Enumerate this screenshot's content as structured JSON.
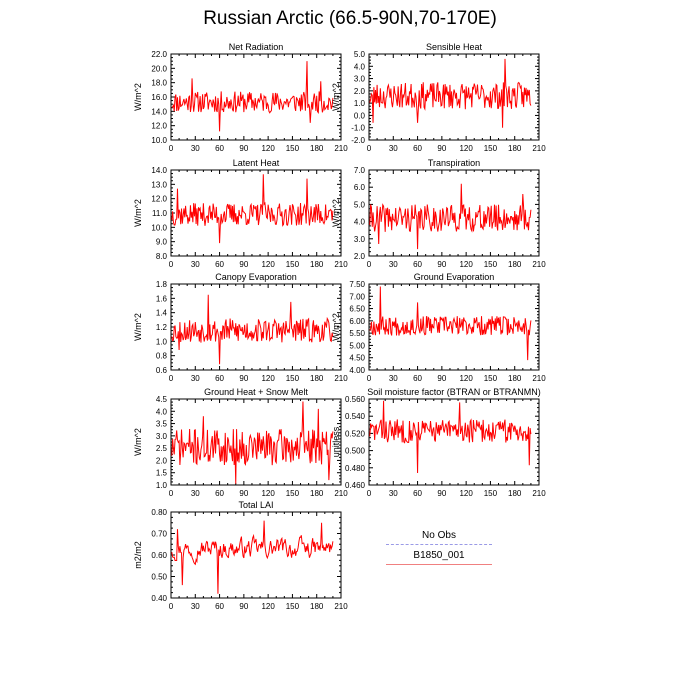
{
  "title": "Russian Arctic (66.5-90N,70-170E)",
  "legend": [
    {
      "label": "No Obs",
      "color": "#9a9ae6",
      "style": "dashed"
    },
    {
      "label": "B1850_001",
      "color": "#f08080",
      "style": "solid"
    }
  ],
  "series_color": "#ff0000",
  "chart_data": [
    {
      "type": "line",
      "title": "Net Radiation",
      "ylabel": "W/m^2",
      "xlim": [
        0,
        210
      ],
      "ylim": [
        10,
        22
      ],
      "xticks": [
        0,
        30,
        60,
        90,
        120,
        150,
        180,
        210
      ],
      "yticks": [
        "10.0",
        "12.0",
        "14.0",
        "16.0",
        "18.0",
        "20.0",
        "22.0"
      ],
      "series": [
        {
          "base": 15.3,
          "amp": 1.5,
          "seed": 11,
          "spikes": [
            [
              26,
              18.6
            ],
            [
              60,
              11.2
            ],
            [
              168,
              21.0
            ],
            [
              172,
              12.4
            ],
            [
              185,
              18.2
            ]
          ]
        }
      ]
    },
    {
      "type": "line",
      "title": "Sensible Heat",
      "ylabel": "W/m^2",
      "xlim": [
        0,
        210
      ],
      "ylim": [
        -2,
        5
      ],
      "xticks": [
        0,
        30,
        60,
        90,
        120,
        150,
        180,
        210
      ],
      "yticks": [
        "-2.0",
        "-1.0",
        "0.0",
        "1.0",
        "2.0",
        "3.0",
        "4.0",
        "5.0"
      ],
      "series": [
        {
          "base": 1.6,
          "amp": 1.1,
          "seed": 23,
          "spikes": [
            [
              168,
              4.6
            ],
            [
              165,
              -1.0
            ],
            [
              60,
              -0.6
            ],
            [
              5,
              -0.6
            ]
          ]
        }
      ]
    },
    {
      "type": "line",
      "title": "Latent Heat",
      "ylabel": "W/m^2",
      "xlim": [
        0,
        210
      ],
      "ylim": [
        8,
        14
      ],
      "xticks": [
        0,
        30,
        60,
        90,
        120,
        150,
        180,
        210
      ],
      "yticks": [
        "8.0",
        "9.0",
        "10.0",
        "11.0",
        "12.0",
        "13.0",
        "14.0"
      ],
      "series": [
        {
          "base": 10.9,
          "amp": 0.8,
          "seed": 37,
          "spikes": [
            [
              114,
              13.7
            ],
            [
              168,
              13.4
            ],
            [
              60,
              8.9
            ],
            [
              8,
              12.7
            ]
          ]
        }
      ]
    },
    {
      "type": "line",
      "title": "Transpiration",
      "ylabel": "W/m^2",
      "xlim": [
        0,
        210
      ],
      "ylim": [
        2,
        7
      ],
      "xticks": [
        0,
        30,
        60,
        90,
        120,
        150,
        180,
        210
      ],
      "yticks": [
        "2.0",
        "3.0",
        "4.0",
        "5.0",
        "6.0",
        "7.0"
      ],
      "series": [
        {
          "base": 4.2,
          "amp": 0.8,
          "seed": 41,
          "spikes": [
            [
              114,
              6.2
            ],
            [
              60,
              2.4
            ],
            [
              12,
              2.7
            ],
            [
              190,
              5.6
            ]
          ]
        }
      ]
    },
    {
      "type": "line",
      "title": "Canopy Evaporation",
      "ylabel": "W/m^2",
      "xlim": [
        0,
        210
      ],
      "ylim": [
        0.6,
        1.8
      ],
      "xticks": [
        0,
        30,
        60,
        90,
        120,
        150,
        180,
        210
      ],
      "yticks": [
        "0.6",
        "0.8",
        "1.0",
        "1.2",
        "1.4",
        "1.6",
        "1.8"
      ],
      "series": [
        {
          "base": 1.15,
          "amp": 0.17,
          "seed": 53,
          "spikes": [
            [
              46,
              1.65
            ],
            [
              60,
              0.68
            ],
            [
              148,
              1.55
            ],
            [
              10,
              0.88
            ]
          ]
        }
      ]
    },
    {
      "type": "line",
      "title": "Ground Evaporation",
      "ylabel": "W/m^2",
      "xlim": [
        0,
        210
      ],
      "ylim": [
        4.0,
        7.5
      ],
      "xticks": [
        0,
        30,
        60,
        90,
        120,
        150,
        180,
        210
      ],
      "yticks": [
        "4.00",
        "4.50",
        "5.00",
        "5.50",
        "6.00",
        "6.50",
        "7.00",
        "7.50"
      ],
      "series": [
        {
          "base": 5.8,
          "amp": 0.4,
          "seed": 67,
          "spikes": [
            [
              14,
              7.4
            ],
            [
              196,
              4.4
            ],
            [
              60,
              6.75
            ]
          ]
        }
      ]
    },
    {
      "type": "line",
      "title": "Ground Heat + Snow Melt",
      "ylabel": "W/m^2",
      "xlim": [
        0,
        210
      ],
      "ylim": [
        1.0,
        4.5
      ],
      "xticks": [
        0,
        30,
        60,
        90,
        120,
        150,
        180,
        210
      ],
      "yticks": [
        "1.0",
        "1.5",
        "2.0",
        "2.5",
        "3.0",
        "3.5",
        "4.0",
        "4.5"
      ],
      "series": [
        {
          "base": 2.55,
          "amp": 0.75,
          "seed": 71,
          "spikes": [
            [
              163,
              4.4
            ],
            [
              80,
              1.05
            ],
            [
              182,
              4.1
            ],
            [
              195,
              1.2
            ],
            [
              40,
              3.8
            ]
          ]
        }
      ]
    },
    {
      "type": "line",
      "title": "Soil moisture factor (BTRAN or BTRANMN)",
      "ylabel": "unitless",
      "xlim": [
        0,
        210
      ],
      "ylim": [
        0.46,
        0.56
      ],
      "xticks": [
        0,
        30,
        60,
        90,
        120,
        150,
        180,
        210
      ],
      "yticks": [
        "0.460",
        "0.480",
        "0.500",
        "0.520",
        "0.540",
        "0.560"
      ],
      "series": [
        {
          "base": 0.523,
          "amp": 0.014,
          "seed": 83,
          "spikes": [
            [
              18,
              0.558
            ],
            [
              60,
              0.474
            ],
            [
              198,
              0.483
            ],
            [
              112,
              0.556
            ]
          ]
        }
      ]
    },
    {
      "type": "line",
      "title": "Total LAI",
      "ylabel": "m2/m2",
      "xlim": [
        0,
        210
      ],
      "ylim": [
        0.4,
        0.8
      ],
      "xticks": [
        0,
        30,
        60,
        90,
        120,
        150,
        180,
        210
      ],
      "yticks": [
        "0.40",
        "0.50",
        "0.60",
        "0.70",
        "0.80"
      ],
      "series": [
        {
          "base": 0.63,
          "amp": 0.05,
          "seed": 97,
          "smooth": true,
          "spikes": [
            [
              8,
              0.72
            ],
            [
              14,
              0.46
            ],
            [
              58,
              0.42
            ],
            [
              115,
              0.76
            ],
            [
              186,
              0.75
            ]
          ]
        }
      ]
    }
  ]
}
